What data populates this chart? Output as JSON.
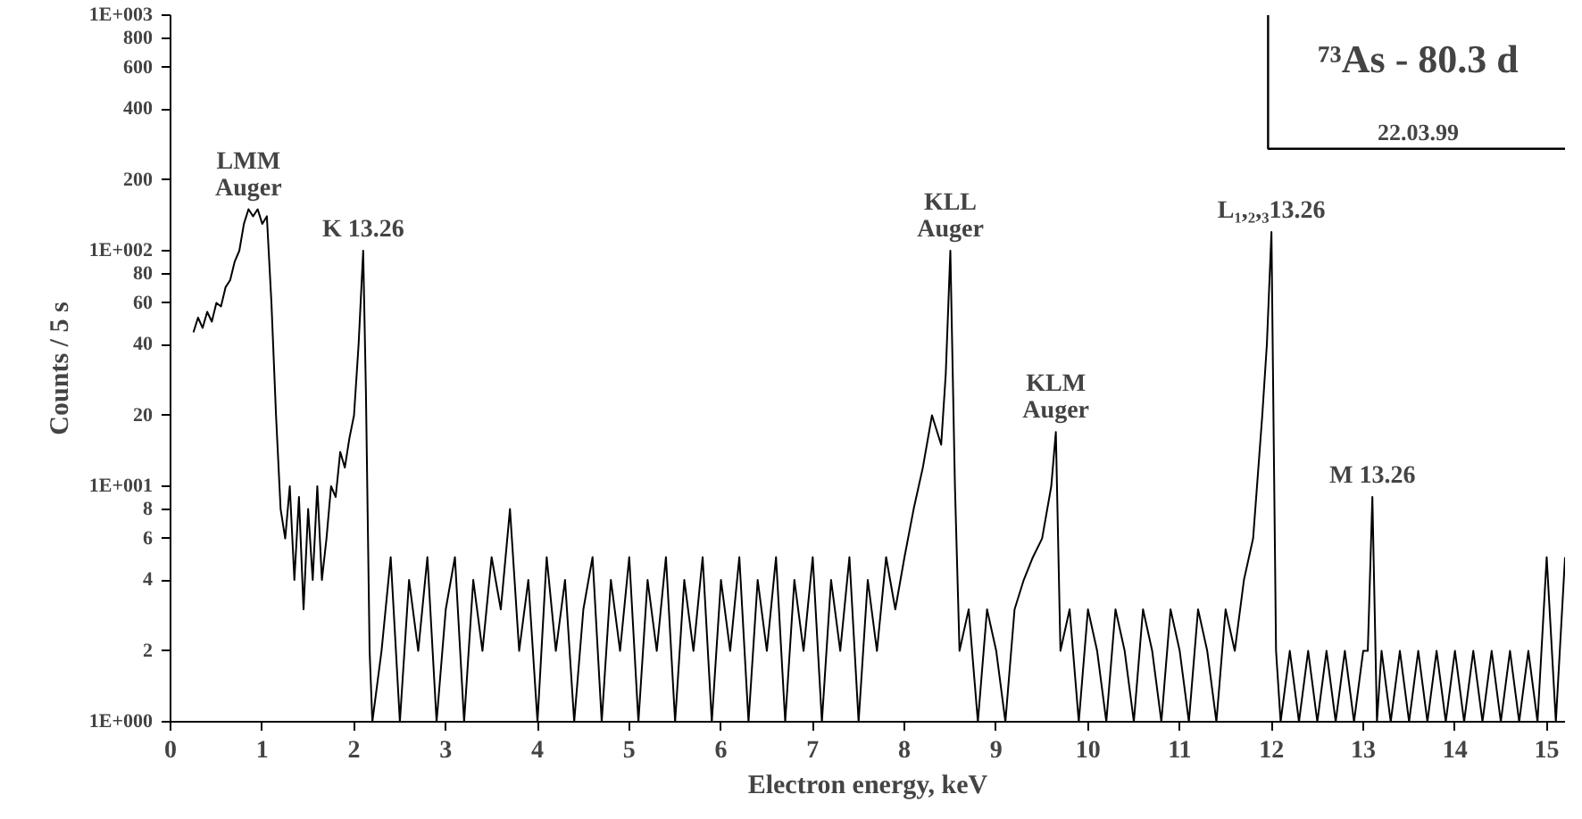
{
  "chart_data": {
    "type": "line",
    "title": "⁷³As - 80.3 d",
    "subtitle": "22.03.99",
    "xlabel": "Electron energy, keV",
    "ylabel": "Counts / 5 s",
    "log": "y",
    "grid": false,
    "marker": "none",
    "line_style": "solid",
    "xlim": [
      0,
      15.2
    ],
    "xticks": [
      0,
      1,
      2,
      3,
      4,
      5,
      6,
      7,
      8,
      9,
      10,
      11,
      12,
      13,
      14,
      15
    ],
    "ylim": [
      1,
      1000
    ],
    "yticks": [
      {
        "value": 1,
        "label": "1E+000"
      },
      2,
      4,
      6,
      8,
      {
        "value": 10,
        "label": "1E+001"
      },
      20,
      40,
      60,
      80,
      {
        "value": 100,
        "label": "1E+002"
      },
      200,
      400,
      600,
      800,
      {
        "value": 1000,
        "label": "1E+003"
      }
    ],
    "series": [
      {
        "color": "#000000",
        "x": [
          0.25,
          0.3,
          0.35,
          0.4,
          0.45,
          0.5,
          0.55,
          0.6,
          0.65,
          0.7,
          0.75,
          0.8,
          0.85,
          0.9,
          0.95,
          1.0,
          1.05,
          1.1,
          1.15,
          1.2,
          1.25,
          1.3,
          1.35,
          1.4,
          1.45,
          1.5,
          1.55,
          1.6,
          1.65,
          1.7,
          1.75,
          1.8,
          1.85,
          1.9,
          1.95,
          2.0,
          2.05,
          2.1,
          2.13,
          2.17,
          2.2,
          2.3,
          2.4,
          2.5,
          2.6,
          2.7,
          2.8,
          2.9,
          3.0,
          3.1,
          3.2,
          3.3,
          3.4,
          3.5,
          3.6,
          3.7,
          3.8,
          3.9,
          4.0,
          4.1,
          4.2,
          4.3,
          4.4,
          4.5,
          4.6,
          4.7,
          4.8,
          4.9,
          5.0,
          5.1,
          5.2,
          5.3,
          5.4,
          5.5,
          5.6,
          5.7,
          5.8,
          5.9,
          6.0,
          6.1,
          6.2,
          6.3,
          6.4,
          6.5,
          6.6,
          6.7,
          6.8,
          6.9,
          7.0,
          7.1,
          7.2,
          7.3,
          7.4,
          7.5,
          7.6,
          7.7,
          7.8,
          7.9,
          8.0,
          8.1,
          8.2,
          8.3,
          8.4,
          8.45,
          8.5,
          8.55,
          8.6,
          8.7,
          8.8,
          8.9,
          9.0,
          9.1,
          9.2,
          9.3,
          9.4,
          9.5,
          9.6,
          9.65,
          9.7,
          9.8,
          9.9,
          10.0,
          10.1,
          10.2,
          10.3,
          10.4,
          10.5,
          10.6,
          10.7,
          10.8,
          10.9,
          11.0,
          11.1,
          11.2,
          11.3,
          11.4,
          11.5,
          11.6,
          11.7,
          11.8,
          11.9,
          11.95,
          12.0,
          12.05,
          12.1,
          12.2,
          12.3,
          12.4,
          12.5,
          12.6,
          12.7,
          12.8,
          12.9,
          13.0,
          13.05,
          13.1,
          13.15,
          13.2,
          13.3,
          13.4,
          13.5,
          13.6,
          13.7,
          13.8,
          13.9,
          14.0,
          14.1,
          14.2,
          14.3,
          14.4,
          14.5,
          14.6,
          14.7,
          14.8,
          14.9,
          15.0,
          15.1,
          15.2
        ],
        "values": [
          45,
          52,
          47,
          55,
          50,
          60,
          58,
          70,
          75,
          90,
          100,
          130,
          150,
          140,
          150,
          130,
          140,
          60,
          20,
          8,
          6,
          10,
          4,
          9,
          3,
          8,
          4,
          10,
          4,
          6,
          10,
          9,
          14,
          12,
          16,
          20,
          40,
          100,
          25,
          2,
          1,
          2,
          5,
          1,
          4,
          2,
          5,
          1,
          3,
          5,
          1,
          4,
          2,
          5,
          3,
          8,
          2,
          4,
          1,
          5,
          2,
          4,
          1,
          3,
          5,
          1,
          4,
          2,
          5,
          1,
          4,
          2,
          5,
          1,
          4,
          2,
          5,
          1,
          4,
          2,
          5,
          1,
          4,
          2,
          5,
          1,
          4,
          2,
          5,
          1,
          4,
          2,
          5,
          1,
          4,
          2,
          5,
          3,
          5,
          8,
          12,
          20,
          15,
          30,
          100,
          10,
          2,
          3,
          1,
          3,
          2,
          1,
          3,
          4,
          5,
          6,
          10,
          17,
          2,
          3,
          1,
          3,
          2,
          1,
          3,
          2,
          1,
          3,
          2,
          1,
          3,
          2,
          1,
          3,
          2,
          1,
          3,
          2,
          4,
          6,
          20,
          40,
          120,
          2,
          1,
          2,
          1,
          2,
          1,
          2,
          1,
          2,
          1,
          2,
          2,
          9,
          1,
          2,
          1,
          2,
          1,
          2,
          1,
          2,
          1,
          2,
          1,
          2,
          1,
          2,
          1,
          2,
          1,
          2,
          1,
          5,
          1,
          5
        ]
      }
    ],
    "annotations": [
      {
        "text": "LMM\nAuger",
        "x": 0.85,
        "y": 150
      },
      {
        "text": "K 13.26",
        "x": 2.1,
        "y": 100
      },
      {
        "text": "KLL\nAuger",
        "x": 8.5,
        "y": 100
      },
      {
        "text": "KLM\nAuger",
        "x": 9.65,
        "y": 17
      },
      {
        "text": "L₁,₂,₃13.26",
        "x": 12.0,
        "y": 120
      },
      {
        "text": "M 13.26",
        "x": 13.1,
        "y": 9
      }
    ]
  }
}
